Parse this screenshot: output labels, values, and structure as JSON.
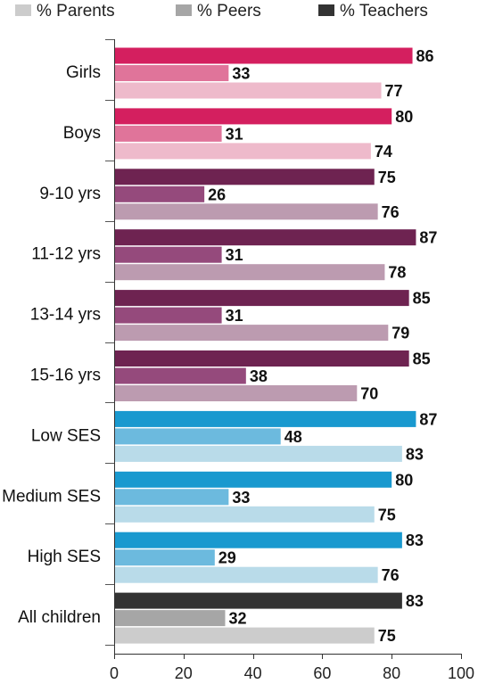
{
  "chart_data": {
    "type": "bar",
    "orientation": "horizontal",
    "categories": [
      "Girls",
      "Boys",
      "9-10 yrs",
      "11-12 yrs",
      "13-14 yrs",
      "15-16 yrs",
      "Low  SES",
      "Medium SES",
      "High SES",
      "All children"
    ],
    "series": [
      {
        "name": "% Teachers",
        "values": [
          86,
          80,
          75,
          87,
          85,
          85,
          87,
          80,
          83,
          83
        ]
      },
      {
        "name": "% Peers",
        "values": [
          33,
          31,
          26,
          31,
          31,
          38,
          48,
          33,
          29,
          32
        ]
      },
      {
        "name": "% Parents",
        "values": [
          77,
          74,
          76,
          78,
          79,
          70,
          83,
          75,
          76,
          75
        ]
      }
    ],
    "legend_order": [
      "% Parents",
      "% Peers",
      "% Teachers"
    ],
    "legend_colors": [
      "#cccccc",
      "#a6a6a6",
      "#333333"
    ],
    "group_colors": [
      [
        "#d41f5f",
        "#e0749a",
        "#eebacb"
      ],
      [
        "#d41f5f",
        "#e0749a",
        "#eebacb"
      ],
      [
        "#6e2351",
        "#954a7c",
        "#bc9bb0"
      ],
      [
        "#6e2351",
        "#954a7c",
        "#bc9bb0"
      ],
      [
        "#6e2351",
        "#954a7c",
        "#bc9bb0"
      ],
      [
        "#6e2351",
        "#954a7c",
        "#bc9bb0"
      ],
      [
        "#1999cf",
        "#6cbade",
        "#b9dbe9"
      ],
      [
        "#1999cf",
        "#6cbade",
        "#b9dbe9"
      ],
      [
        "#1999cf",
        "#6cbade",
        "#b9dbe9"
      ],
      [
        "#333333",
        "#a6a6a6",
        "#cccccc"
      ]
    ],
    "xlim": [
      0,
      100
    ],
    "xticks": [
      0,
      20,
      40,
      60,
      80,
      100
    ],
    "grid": false,
    "legend_position": "top"
  }
}
